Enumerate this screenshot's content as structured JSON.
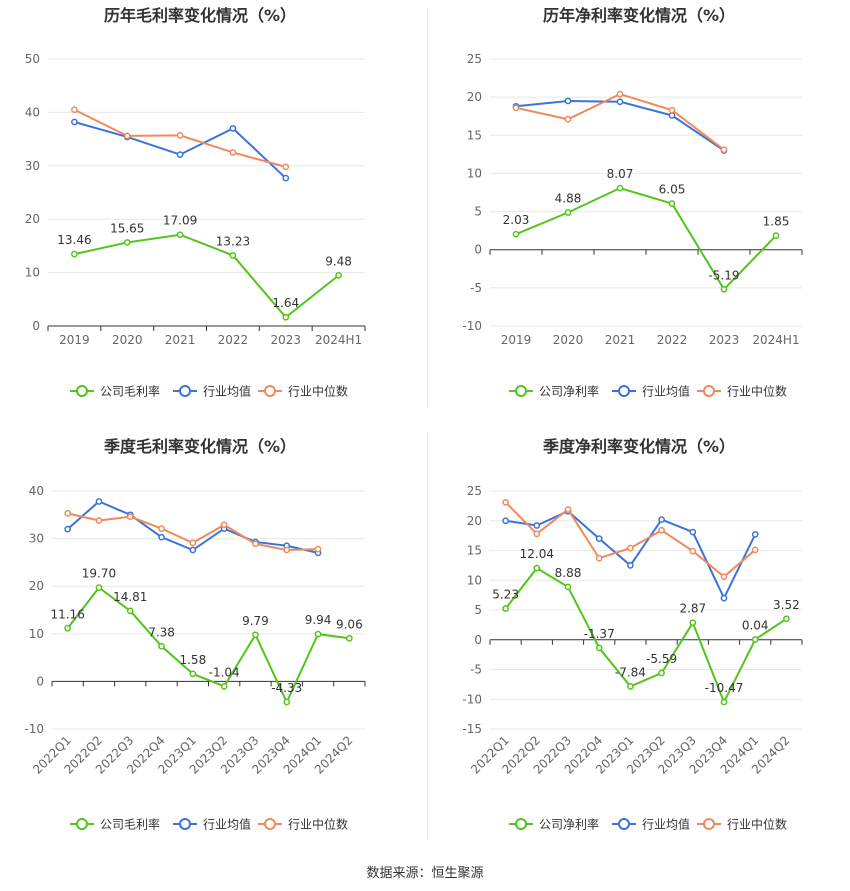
{
  "source_label": "数据来源：恒生聚源",
  "colors": {
    "company": "#52c41a",
    "industry_avg": "#3b73db",
    "industry_median": "#ef8a5c",
    "grid": "#e8e8e8",
    "axis": "#333333",
    "tick": "#666666"
  },
  "chart_data": [
    {
      "type": "line",
      "title": "历年毛利率变化情况（%）",
      "categories": [
        "2019",
        "2020",
        "2021",
        "2022",
        "2023",
        "2024H1"
      ],
      "ylim": [
        0,
        50
      ],
      "yticks": [
        0,
        10,
        20,
        30,
        40,
        50
      ],
      "grid": true,
      "legend": "bottom",
      "series": [
        {
          "name": "公司毛利率",
          "color": "company",
          "values": [
            13.46,
            15.65,
            17.09,
            13.23,
            1.64,
            9.48
          ],
          "labels": true
        },
        {
          "name": "行业均值",
          "color": "industry_avg",
          "values": [
            38.2,
            35.4,
            32.1,
            37.0,
            27.7,
            null
          ],
          "labels": false
        },
        {
          "name": "行业中位数",
          "color": "industry_median",
          "values": [
            40.5,
            35.6,
            35.7,
            32.5,
            29.8,
            null
          ],
          "labels": false
        }
      ]
    },
    {
      "type": "line",
      "title": "历年净利率变化情况（%）",
      "categories": [
        "2019",
        "2020",
        "2021",
        "2022",
        "2023",
        "2024H1"
      ],
      "ylim": [
        -10,
        25
      ],
      "yticks": [
        -10,
        -5,
        0,
        5,
        10,
        15,
        20,
        25
      ],
      "grid": true,
      "legend": "bottom",
      "series": [
        {
          "name": "公司净利率",
          "color": "company",
          "values": [
            2.03,
            4.88,
            8.07,
            6.05,
            -5.19,
            1.85
          ],
          "labels": true
        },
        {
          "name": "行业均值",
          "color": "industry_avg",
          "values": [
            18.8,
            19.5,
            19.4,
            17.6,
            13.0,
            null
          ],
          "labels": false
        },
        {
          "name": "行业中位数",
          "color": "industry_median",
          "values": [
            18.6,
            17.1,
            20.4,
            18.3,
            13.1,
            null
          ],
          "labels": false
        }
      ]
    },
    {
      "type": "line",
      "title": "季度毛利率变化情况（%）",
      "categories": [
        "2022Q1",
        "2022Q2",
        "2022Q3",
        "2022Q4",
        "2023Q1",
        "2023Q2",
        "2023Q3",
        "2023Q4",
        "2024Q1",
        "2024Q2"
      ],
      "ylim": [
        -10,
        40
      ],
      "yticks": [
        -10,
        0,
        10,
        20,
        30,
        40
      ],
      "grid": true,
      "legend": "bottom",
      "series": [
        {
          "name": "公司毛利率",
          "color": "company",
          "values": [
            11.16,
            19.7,
            14.81,
            7.38,
            1.58,
            -1.04,
            9.79,
            -4.33,
            9.94,
            9.06
          ],
          "labels": true
        },
        {
          "name": "行业均值",
          "color": "industry_avg",
          "values": [
            32.0,
            37.8,
            35.0,
            30.3,
            27.6,
            32.1,
            29.3,
            28.5,
            27.0,
            null
          ],
          "labels": false
        },
        {
          "name": "行业中位数",
          "color": "industry_median",
          "values": [
            35.3,
            33.8,
            34.6,
            32.1,
            29.1,
            32.9,
            28.9,
            27.6,
            27.8,
            null
          ],
          "labels": false
        }
      ]
    },
    {
      "type": "line",
      "title": "季度净利率变化情况（%）",
      "categories": [
        "2022Q1",
        "2022Q2",
        "2022Q3",
        "2022Q4",
        "2023Q1",
        "2023Q2",
        "2023Q3",
        "2023Q4",
        "2024Q1",
        "2024Q2"
      ],
      "ylim": [
        -15,
        25
      ],
      "yticks": [
        -15,
        -10,
        -5,
        0,
        5,
        10,
        15,
        20,
        25
      ],
      "grid": true,
      "legend": "bottom",
      "series": [
        {
          "name": "公司净利率",
          "color": "company",
          "values": [
            5.23,
            12.04,
            8.88,
            -1.37,
            -7.84,
            -5.59,
            2.87,
            -10.47,
            0.04,
            3.52
          ],
          "labels": true
        },
        {
          "name": "行业均值",
          "color": "industry_avg",
          "values": [
            20.0,
            19.2,
            21.6,
            17.0,
            12.5,
            20.2,
            18.1,
            7.0,
            17.7,
            null
          ],
          "labels": false
        },
        {
          "name": "行业中位数",
          "color": "industry_median",
          "values": [
            23.1,
            17.8,
            21.9,
            13.7,
            15.4,
            18.4,
            14.9,
            10.6,
            15.1,
            null
          ],
          "labels": false
        }
      ]
    }
  ]
}
